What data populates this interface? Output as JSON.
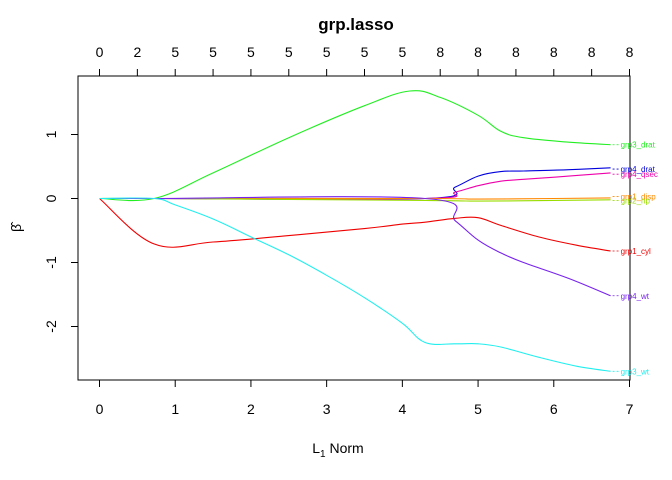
{
  "chart_data": {
    "type": "line",
    "title": "grp.lasso",
    "xlabel": "L",
    "xlabel_sub": "1",
    "xlabel_suffix": " Norm",
    "ylabel": "β̂",
    "xlim": [
      0,
      7
    ],
    "ylim": [
      -2.5,
      1.7
    ],
    "x_ticks": [
      "0",
      "1",
      "2",
      "3",
      "4",
      "5",
      "6",
      "7"
    ],
    "y_ticks": [
      "-2",
      "-1",
      "0",
      "1"
    ],
    "top_ticks": [
      {
        "x": 0,
        "label": "0"
      },
      {
        "x": 0.5,
        "label": "2"
      },
      {
        "x": 1.0,
        "label": "5"
      },
      {
        "x": 1.5,
        "label": "5"
      },
      {
        "x": 2.0,
        "label": "5"
      },
      {
        "x": 2.5,
        "label": "5"
      },
      {
        "x": 3.0,
        "label": "5"
      },
      {
        "x": 3.5,
        "label": "5"
      },
      {
        "x": 4.0,
        "label": "5"
      },
      {
        "x": 4.5,
        "label": "8"
      },
      {
        "x": 5.0,
        "label": "8"
      },
      {
        "x": 5.5,
        "label": "8"
      },
      {
        "x": 6.0,
        "label": "8"
      },
      {
        "x": 6.5,
        "label": "8"
      },
      {
        "x": 7.0,
        "label": "8"
      }
    ],
    "grid": false,
    "series": [
      {
        "name": "grp3_drat",
        "color": "#22ee22",
        "x": [
          0,
          0.72,
          1.5,
          2.5,
          3.5,
          4.1,
          4.5,
          5.0,
          5.3,
          5.6,
          6.2,
          6.75
        ],
        "y": [
          0,
          0,
          0.4,
          0.95,
          1.45,
          1.68,
          1.58,
          1.3,
          1.05,
          0.95,
          0.88,
          0.84
        ]
      },
      {
        "name": "grp4_drat",
        "color": "#0000dd",
        "x": [
          0,
          0.72,
          4.3,
          4.7,
          5.0,
          5.3,
          5.6,
          6.2,
          6.75
        ],
        "y": [
          0,
          0,
          0,
          0.18,
          0.35,
          0.42,
          0.43,
          0.45,
          0.48
        ]
      },
      {
        "name": "grp4_qsec",
        "color": "#ee00aa",
        "x": [
          0,
          0.72,
          4.3,
          4.7,
          5.0,
          5.3,
          5.6,
          6.2,
          6.75
        ],
        "y": [
          0,
          0,
          0,
          0.1,
          0.2,
          0.27,
          0.3,
          0.35,
          0.4
        ]
      },
      {
        "name": "grp1_disp",
        "color": "#ff8800",
        "x": [
          0,
          0.72,
          4.3,
          5.0,
          6.0,
          6.75
        ],
        "y": [
          0,
          0,
          0,
          -0.01,
          0.0,
          0.01
        ]
      },
      {
        "name": "grp2_hp",
        "color": "#99dd00",
        "x": [
          0,
          0.72,
          4.3,
          5.0,
          6.0,
          6.75
        ],
        "y": [
          0,
          0,
          -0.03,
          -0.04,
          -0.03,
          -0.02
        ]
      },
      {
        "name": "grp1_cyl",
        "color": "#ee0000",
        "x": [
          0,
          0.72,
          1.5,
          2.5,
          3.5,
          4.0,
          4.3,
          4.7,
          5.0,
          5.3,
          5.8,
          6.3,
          6.75
        ],
        "y": [
          0,
          -0.71,
          -0.68,
          -0.58,
          -0.47,
          -0.4,
          -0.37,
          -0.31,
          -0.3,
          -0.42,
          -0.6,
          -0.73,
          -0.82
        ]
      },
      {
        "name": "grp4_wt",
        "color": "#7722ee",
        "x": [
          0,
          0.72,
          4.3,
          4.7,
          5.0,
          5.3,
          5.6,
          6.2,
          6.75
        ],
        "y": [
          0,
          0,
          0,
          -0.35,
          -0.65,
          -0.85,
          -1.0,
          -1.25,
          -1.52
        ]
      },
      {
        "name": "grp3_wt",
        "color": "#22eeee",
        "x": [
          0,
          0.72,
          1.0,
          1.5,
          2.0,
          2.5,
          3.0,
          3.5,
          4.0,
          4.3,
          4.7,
          5.0,
          5.3,
          5.8,
          6.3,
          6.75
        ],
        "y": [
          0,
          0,
          -0.1,
          -0.32,
          -0.6,
          -0.88,
          -1.2,
          -1.55,
          -1.95,
          -2.25,
          -2.27,
          -2.27,
          -2.32,
          -2.48,
          -2.62,
          -2.7
        ]
      }
    ],
    "series_label_y": {
      "grp3_drat": 0.84,
      "grp4_drat": 0.46,
      "grp4_qsec": 0.38,
      "grp1_disp": 0.03,
      "grp2_hp": -0.03,
      "grp1_cyl": -0.82,
      "grp4_wt": -1.52,
      "grp3_wt": -2.7
    }
  }
}
